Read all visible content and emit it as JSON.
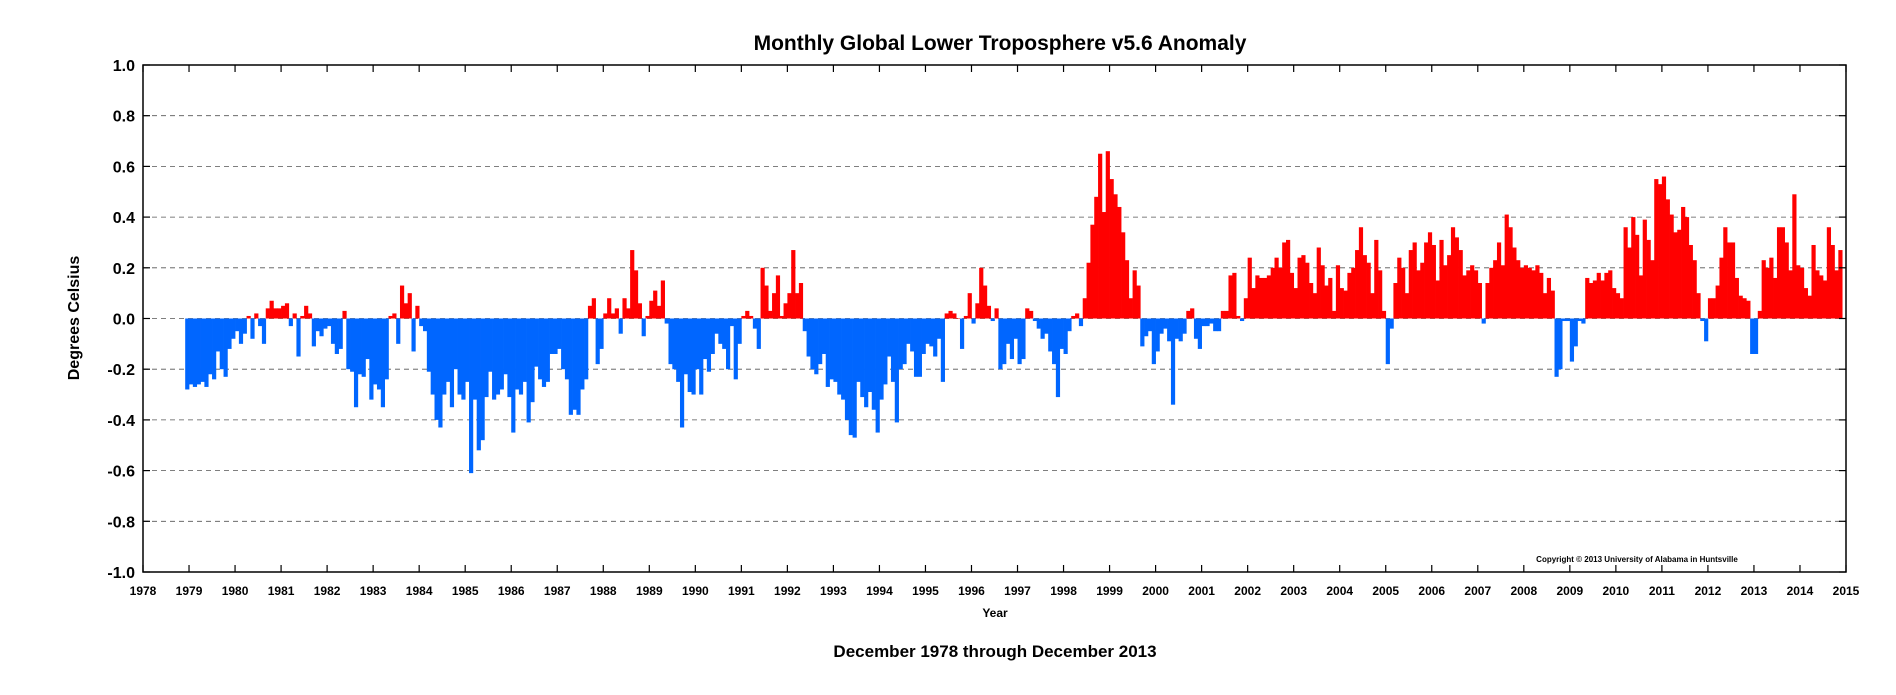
{
  "chart_data": {
    "type": "bar",
    "title": "Monthly Global Lower Troposphere v5.6 Anomaly",
    "subtitle": "December 1978 through December 2013",
    "xlabel": "Year",
    "ylabel": "Degrees Celsius",
    "copyright": "Copyright © 2013 University of Alabama in Huntsville",
    "xlim": [
      1978,
      2015
    ],
    "ylim": [
      -1.0,
      1.0
    ],
    "x_ticks": [
      "1978",
      "1979",
      "1980",
      "1981",
      "1982",
      "1983",
      "1984",
      "1985",
      "1986",
      "1987",
      "1988",
      "1989",
      "1990",
      "1991",
      "1992",
      "1993",
      "1994",
      "1995",
      "1996",
      "1997",
      "1998",
      "1999",
      "2000",
      "2001",
      "2002",
      "2003",
      "2004",
      "2005",
      "2006",
      "2007",
      "2008",
      "2009",
      "2010",
      "2011",
      "2012",
      "2013",
      "2014",
      "2015"
    ],
    "y_ticks": [
      "1.0",
      "0.8",
      "0.6",
      "0.4",
      "0.2",
      "0.0",
      "-0.2",
      "-0.4",
      "-0.6",
      "-0.8",
      "-1.0"
    ],
    "grid": "horizontal dashed",
    "positive_color": "#ff0000",
    "negative_color": "#0066ff",
    "series": [
      {
        "start": "1978-12",
        "interval": "month",
        "values": [
          -0.28,
          -0.26,
          -0.27,
          -0.26,
          -0.25,
          -0.27,
          -0.22,
          -0.24,
          -0.13,
          -0.2,
          -0.23,
          -0.12,
          -0.08,
          -0.05,
          -0.1,
          -0.06,
          0.01,
          -0.08,
          0.02,
          -0.03,
          -0.1,
          0.04,
          0.07,
          0.04,
          0.04,
          0.05,
          0.06,
          -0.03,
          0.02,
          -0.15,
          0.01,
          0.05,
          0.02,
          -0.11,
          -0.05,
          -0.07,
          -0.04,
          -0.03,
          -0.1,
          -0.14,
          -0.12,
          0.03,
          -0.2,
          -0.21,
          -0.35,
          -0.22,
          -0.23,
          -0.16,
          -0.32,
          -0.26,
          -0.28,
          -0.35,
          -0.24,
          0.01,
          0.02,
          -0.1,
          0.13,
          0.06,
          0.1,
          -0.13,
          0.05,
          -0.03,
          -0.05,
          -0.21,
          -0.3,
          -0.4,
          -0.43,
          -0.3,
          -0.25,
          -0.35,
          -0.2,
          -0.3,
          -0.32,
          -0.25,
          -0.61,
          -0.32,
          -0.52,
          -0.48,
          -0.31,
          -0.21,
          -0.32,
          -0.3,
          -0.28,
          -0.22,
          -0.31,
          -0.45,
          -0.28,
          -0.3,
          -0.25,
          -0.41,
          -0.33,
          -0.19,
          -0.24,
          -0.27,
          -0.25,
          -0.14,
          -0.14,
          -0.12,
          -0.2,
          -0.24,
          -0.38,
          -0.36,
          -0.38,
          -0.28,
          -0.24,
          0.05,
          0.08,
          -0.18,
          -0.12,
          0.02,
          0.08,
          0.02,
          0.04,
          -0.06,
          0.08,
          0.04,
          0.27,
          0.19,
          0.06,
          -0.07,
          0.01,
          0.07,
          0.11,
          0.05,
          0.15,
          -0.02,
          -0.18,
          -0.2,
          -0.25,
          -0.43,
          -0.22,
          -0.29,
          -0.3,
          -0.2,
          -0.3,
          -0.16,
          -0.21,
          -0.14,
          -0.06,
          -0.1,
          -0.12,
          -0.2,
          -0.03,
          -0.24,
          -0.1,
          0.01,
          0.03,
          0.01,
          -0.04,
          -0.12,
          0.2,
          0.13,
          0.03,
          0.1,
          0.17,
          0.01,
          0.06,
          0.1,
          0.27,
          0.1,
          0.14,
          -0.05,
          -0.15,
          -0.2,
          -0.22,
          -0.18,
          -0.14,
          -0.27,
          -0.24,
          -0.25,
          -0.3,
          -0.32,
          -0.4,
          -0.46,
          -0.47,
          -0.25,
          -0.31,
          -0.35,
          -0.29,
          -0.36,
          -0.45,
          -0.32,
          -0.26,
          -0.15,
          -0.25,
          -0.41,
          -0.2,
          -0.18,
          -0.1,
          -0.13,
          -0.23,
          -0.23,
          -0.14,
          -0.1,
          -0.11,
          -0.15,
          -0.08,
          -0.25,
          0.02,
          0.03,
          0.02,
          0.0,
          -0.12,
          0.01,
          0.1,
          -0.02,
          0.06,
          0.2,
          0.13,
          0.05,
          -0.01,
          0.04,
          -0.2,
          -0.18,
          -0.1,
          -0.16,
          -0.08,
          -0.18,
          -0.16,
          0.04,
          0.03,
          -0.01,
          -0.04,
          -0.08,
          -0.06,
          -0.13,
          -0.18,
          -0.31,
          -0.12,
          -0.14,
          -0.05,
          0.01,
          0.02,
          -0.03,
          0.08,
          0.22,
          0.37,
          0.48,
          0.65,
          0.42,
          0.66,
          0.55,
          0.49,
          0.44,
          0.34,
          0.23,
          0.08,
          0.19,
          0.13,
          -0.11,
          -0.07,
          -0.05,
          -0.18,
          -0.13,
          -0.06,
          -0.04,
          -0.09,
          -0.34,
          -0.08,
          -0.09,
          -0.06,
          0.03,
          0.04,
          -0.08,
          -0.12,
          -0.03,
          -0.03,
          -0.02,
          -0.05,
          -0.05,
          0.03,
          0.03,
          0.17,
          0.18,
          0.01,
          -0.01,
          0.08,
          0.24,
          0.12,
          0.17,
          0.16,
          0.16,
          0.17,
          0.2,
          0.24,
          0.2,
          0.3,
          0.31,
          0.18,
          0.12,
          0.24,
          0.25,
          0.22,
          0.14,
          0.1,
          0.28,
          0.21,
          0.13,
          0.16,
          0.03,
          0.21,
          0.12,
          0.11,
          0.18,
          0.2,
          0.27,
          0.36,
          0.25,
          0.22,
          0.1,
          0.31,
          0.19,
          0.03,
          -0.18,
          -0.04,
          0.14,
          0.24,
          0.2,
          0.1,
          0.27,
          0.3,
          0.19,
          0.22,
          0.3,
          0.34,
          0.29,
          0.15,
          0.31,
          0.21,
          0.25,
          0.36,
          0.32,
          0.27,
          0.17,
          0.19,
          0.21,
          0.19,
          0.14,
          -0.02,
          0.14,
          0.2,
          0.23,
          0.3,
          0.21,
          0.41,
          0.36,
          0.28,
          0.23,
          0.2,
          0.21,
          0.2,
          0.19,
          0.21,
          0.18,
          0.1,
          0.16,
          0.11,
          -0.23,
          -0.2,
          -0.01,
          -0.01,
          -0.17,
          -0.11,
          -0.01,
          -0.02,
          0.16,
          0.14,
          0.15,
          0.18,
          0.15,
          0.18,
          0.19,
          0.12,
          0.1,
          0.08,
          0.36,
          0.28,
          0.4,
          0.33,
          0.17,
          0.39,
          0.31,
          0.23,
          0.55,
          0.53,
          0.56,
          0.47,
          0.41,
          0.34,
          0.35,
          0.44,
          0.4,
          0.29,
          0.23,
          0.1,
          -0.01,
          -0.09,
          0.08,
          0.08,
          0.13,
          0.24,
          0.36,
          0.3,
          0.3,
          0.16,
          0.09,
          0.08,
          0.07,
          -0.14,
          -0.14,
          0.03,
          0.23,
          0.2,
          0.24,
          0.16,
          0.36,
          0.36,
          0.3,
          0.19,
          0.49,
          0.21,
          0.2,
          0.12,
          0.09,
          0.29,
          0.19,
          0.17,
          0.15,
          0.36,
          0.29,
          0.19,
          0.27
        ]
      }
    ]
  }
}
